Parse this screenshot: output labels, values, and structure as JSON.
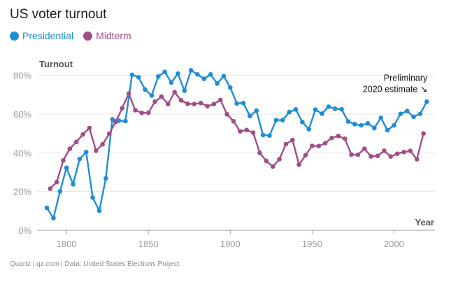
{
  "footer": "Quartz | qz.com | Data: United States Elections Project",
  "chart_data": {
    "type": "line",
    "title": "US voter turnout",
    "ylabel": "Turnout",
    "xlabel": "Year",
    "xlim": [
      1782,
      2025
    ],
    "ylim": [
      0,
      90
    ],
    "x_ticks": [
      1800,
      1850,
      1900,
      1950,
      2000
    ],
    "x_tick_labels": [
      "1800",
      "1850",
      "1900",
      "1950",
      "2000"
    ],
    "y_ticks": [
      0,
      20,
      40,
      60,
      80
    ],
    "y_tick_labels": [
      "0%",
      "20%",
      "40%",
      "60%",
      "80%"
    ],
    "annotation": {
      "lines": [
        "Preliminary",
        "2020 estimate ↘"
      ],
      "x": 2020,
      "y": 66.4
    },
    "series": [
      {
        "name": "Presidential",
        "color": "#1f8dd6",
        "x": [
          1788,
          1792,
          1796,
          1800,
          1804,
          1808,
          1812,
          1816,
          1820,
          1824,
          1828,
          1832,
          1836,
          1840,
          1844,
          1848,
          1852,
          1856,
          1860,
          1864,
          1868,
          1872,
          1876,
          1880,
          1884,
          1888,
          1892,
          1896,
          1900,
          1904,
          1908,
          1912,
          1916,
          1920,
          1924,
          1928,
          1932,
          1936,
          1940,
          1944,
          1948,
          1952,
          1956,
          1960,
          1964,
          1968,
          1972,
          1976,
          1980,
          1984,
          1988,
          1992,
          1996,
          2000,
          2004,
          2008,
          2012,
          2016,
          2020
        ],
        "values": [
          11.6,
          6.3,
          20.1,
          32.3,
          23.8,
          36.8,
          40.4,
          16.9,
          10.1,
          26.8,
          57.3,
          56.6,
          56.4,
          80.3,
          79.0,
          72.7,
          69.6,
          79.4,
          81.8,
          76.3,
          80.9,
          72.1,
          82.6,
          80.5,
          78.2,
          80.5,
          75.8,
          79.6,
          73.7,
          65.5,
          65.7,
          59.0,
          61.8,
          49.2,
          48.9,
          56.9,
          56.9,
          61.0,
          62.4,
          55.9,
          52.2,
          62.3,
          60.2,
          63.8,
          62.8,
          62.5,
          56.2,
          54.8,
          54.2,
          55.2,
          52.8,
          58.1,
          51.7,
          54.2,
          60.1,
          61.6,
          58.6,
          60.1,
          66.4
        ]
      },
      {
        "name": "Midterm",
        "color": "#a04e86",
        "x": [
          1790,
          1794,
          1798,
          1802,
          1806,
          1810,
          1814,
          1818,
          1822,
          1826,
          1830,
          1834,
          1838,
          1842,
          1846,
          1850,
          1854,
          1858,
          1862,
          1866,
          1870,
          1874,
          1878,
          1882,
          1886,
          1890,
          1894,
          1898,
          1902,
          1906,
          1910,
          1914,
          1918,
          1922,
          1926,
          1930,
          1934,
          1938,
          1942,
          1946,
          1950,
          1954,
          1958,
          1962,
          1966,
          1970,
          1974,
          1978,
          1982,
          1986,
          1990,
          1994,
          1998,
          2002,
          2006,
          2010,
          2014,
          2018
        ],
        "values": [
          21.5,
          24.9,
          36.1,
          42.1,
          45.6,
          49.5,
          52.8,
          41.1,
          44.4,
          49.8,
          55.9,
          63.1,
          70.6,
          62.0,
          60.6,
          60.7,
          66.4,
          69.0,
          65.2,
          71.3,
          67.1,
          65.3,
          65.2,
          65.7,
          64.1,
          65.2,
          67.3,
          59.9,
          56.3,
          51.1,
          51.8,
          50.4,
          40.0,
          35.8,
          32.9,
          36.7,
          44.5,
          46.6,
          33.9,
          38.8,
          43.6,
          43.5,
          45.0,
          47.7,
          48.7,
          47.3,
          39.1,
          39.0,
          42.1,
          38.1,
          38.4,
          41.1,
          38.1,
          39.5,
          40.4,
          41.0,
          36.7,
          50.0
        ]
      }
    ]
  }
}
